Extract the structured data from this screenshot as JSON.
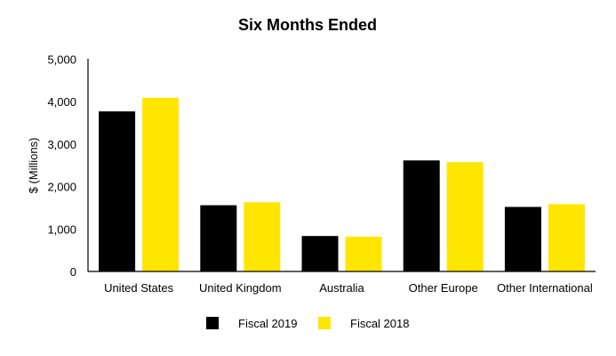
{
  "chart_data": {
    "type": "bar",
    "title": "Six Months Ended",
    "xlabel": "",
    "ylabel": "$ (Millions)",
    "ylim": [
      0,
      5000
    ],
    "yticks": [
      "0",
      "1,000",
      "2,000",
      "3,000",
      "4,000",
      "5,000"
    ],
    "ytick_values": [
      0,
      1000,
      2000,
      3000,
      4000,
      5000
    ],
    "grid": false,
    "legend_position": "bottom",
    "categories": [
      "United States",
      "United Kingdom",
      "Australia",
      "Other Europe",
      "Other International"
    ],
    "series": [
      {
        "name": "Fiscal 2019",
        "color": "#000000",
        "values": [
          3770,
          1560,
          835,
          2615,
          1520
        ]
      },
      {
        "name": "Fiscal 2018",
        "color": "#FFE600",
        "values": [
          4090,
          1630,
          820,
          2575,
          1585
        ]
      }
    ]
  }
}
